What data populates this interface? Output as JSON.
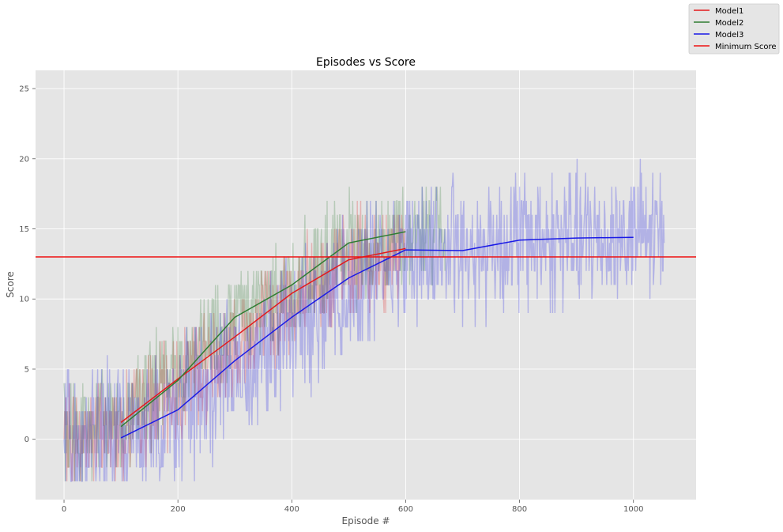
{
  "chart_data": {
    "type": "line",
    "title": "Episodes vs Score",
    "xlabel": "Episode #",
    "ylabel": "Score",
    "xlim": [
      -50,
      1110
    ],
    "ylim": [
      -4.3,
      26.3
    ],
    "xticks": [
      0,
      200,
      400,
      600,
      800,
      1000
    ],
    "yticks": [
      0,
      5,
      10,
      15,
      20,
      25
    ],
    "grid": true,
    "background": "#e5e5e5",
    "legend_position": "top-right (outside plot)",
    "legend": [
      "Model1",
      "Model2",
      "Model3",
      "Minimum Score"
    ],
    "colors": {
      "Model1": "#e41a1c",
      "Model2": "#2e7d32",
      "Model3": "#1a1ae6",
      "Minimum Score": "#ee1111"
    },
    "raw_series": [
      {
        "name": "Model1",
        "episodes": 600,
        "trend_x": [
          0,
          100,
          200,
          300,
          400,
          500,
          600
        ],
        "trend_y": [
          0,
          0.8,
          4,
          7,
          10,
          12.5,
          13.6
        ],
        "noise": 3
      },
      {
        "name": "Model2",
        "episodes": 670,
        "trend_x": [
          0,
          100,
          200,
          300,
          400,
          500,
          670
        ],
        "trend_y": [
          0,
          1.5,
          5,
          8.5,
          11,
          13.5,
          15
        ],
        "noise": 3
      },
      {
        "name": "Model3",
        "episodes": 1055,
        "trend_x": [
          0,
          100,
          200,
          300,
          400,
          500,
          600,
          700,
          800,
          900,
          1055
        ],
        "trend_y": [
          0,
          0.3,
          2,
          5,
          8,
          11,
          13.4,
          13.4,
          14.2,
          14.3,
          14.5
        ],
        "noise": 4
      }
    ],
    "series": [
      {
        "name": "Model1",
        "x": [
          100,
          200,
          300,
          400,
          500,
          600
        ],
        "y": [
          1.2,
          4.3,
          7.3,
          10.4,
          12.8,
          13.6
        ]
      },
      {
        "name": "Model2",
        "x": [
          100,
          200,
          300,
          400,
          500,
          600
        ],
        "y": [
          0.9,
          4.2,
          8.7,
          11.0,
          14.0,
          14.8
        ]
      },
      {
        "name": "Model3",
        "x": [
          100,
          200,
          300,
          400,
          500,
          600,
          700,
          800,
          900,
          1000
        ],
        "y": [
          0.1,
          2.1,
          5.6,
          8.7,
          11.5,
          13.5,
          13.45,
          14.2,
          14.35,
          14.4
        ]
      }
    ],
    "reference_line": {
      "name": "Minimum Score",
      "y": 13
    }
  }
}
